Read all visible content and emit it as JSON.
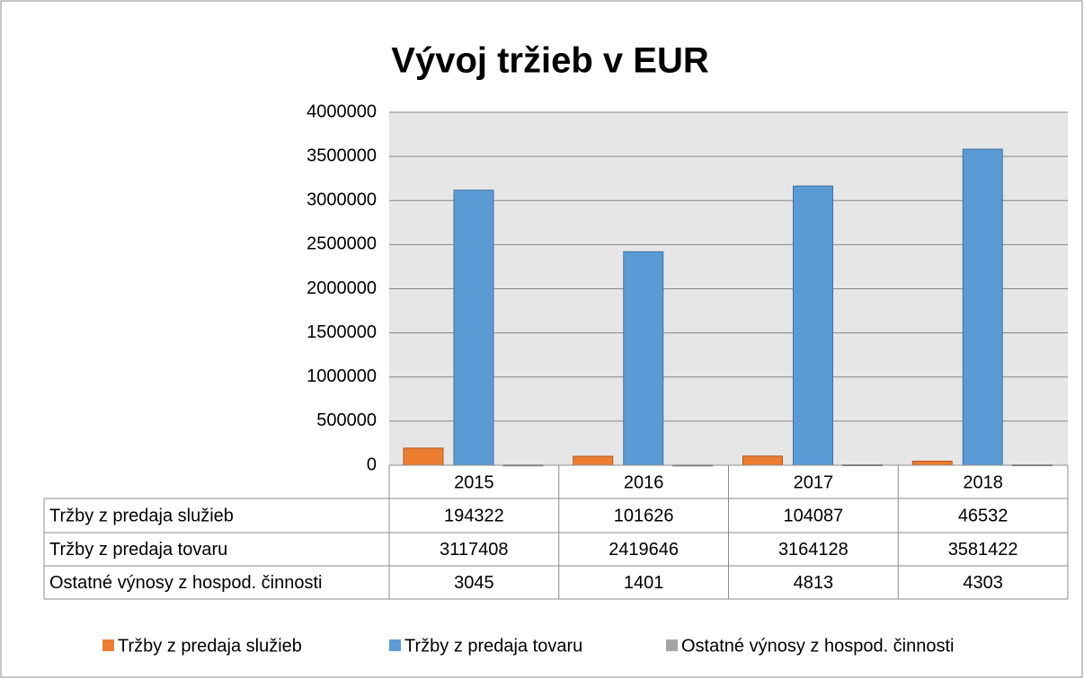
{
  "chart_data": {
    "type": "bar",
    "title": "Vývoj tržieb v EUR",
    "categories": [
      "2015",
      "2016",
      "2017",
      "2018"
    ],
    "series": [
      {
        "name": "Tržby z predaja služieb",
        "color": "#ed7d31",
        "values": [
          194322,
          101626,
          104087,
          46532
        ]
      },
      {
        "name": "Tržby z predaja tovaru",
        "color": "#5b9bd5",
        "values": [
          3117408,
          2419646,
          3164128,
          3581422
        ]
      },
      {
        "name": "Ostatné výnosy z hospod. činnosti",
        "color": "#a5a5a5",
        "values": [
          3045,
          1401,
          4813,
          4303
        ]
      }
    ],
    "ylim": [
      0,
      4000000
    ],
    "yticks": [
      0,
      500000,
      1000000,
      1500000,
      2000000,
      2500000,
      3000000,
      3500000,
      4000000
    ],
    "grid": true,
    "data_table": true,
    "legend": "bottom"
  }
}
